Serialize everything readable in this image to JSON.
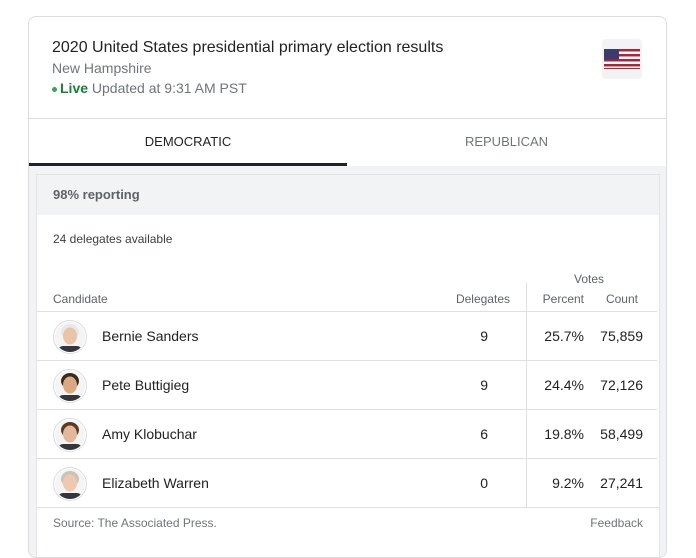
{
  "header": {
    "title": "2020 United States presidential primary election results",
    "subtitle": "New Hampshire",
    "live": "Live",
    "updated": "Updated at 9:31 AM PST"
  },
  "tabs": [
    "DEMOCRATIC",
    "REPUBLICAN"
  ],
  "reporting": "98% reporting",
  "delegates_available": "24 delegates available",
  "table": {
    "group_header": "Votes",
    "columns": [
      "Candidate",
      "Delegates",
      "Percent",
      "Count"
    ],
    "rows": [
      [
        "Bernie Sanders",
        "9",
        "25.7%",
        "75,859"
      ],
      [
        "Pete Buttigieg",
        "9",
        "24.4%",
        "72,126"
      ],
      [
        "Amy Klobuchar",
        "6",
        "19.8%",
        "58,499"
      ],
      [
        "Elizabeth Warren",
        "0",
        "9.2%",
        "27,241"
      ]
    ]
  },
  "footer": {
    "source": "Source: The Associated Press.",
    "feedback": "Feedback"
  }
}
